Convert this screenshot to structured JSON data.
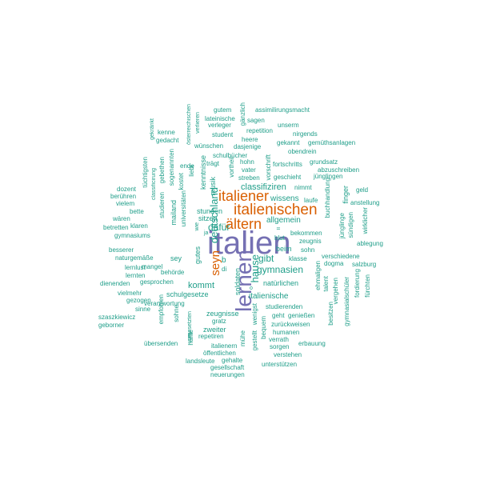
{
  "colors": {
    "small": "#1f9e89",
    "medium": "#d95f02",
    "large": "#7570b3"
  },
  "words": [
    "italien",
    "lernen",
    "italienischen",
    "italiener",
    "ältern",
    "seyn",
    "deutschland",
    "gymnasien",
    "hause",
    "gibt",
    "dafür",
    "kommt",
    "classifiziren",
    "gutem",
    "assimilirungsmacht",
    "lateinische",
    "sagen",
    "gänzlich",
    "verleger",
    "unserm",
    "repetition",
    "student",
    "nirgends",
    "heere",
    "gekannt",
    "gemüthsanlagen",
    "wünschen",
    "dasjenige",
    "obendrein",
    "verlieren",
    "österreichischen",
    "gekränkt",
    "kenne",
    "gedacht",
    "schulbücher",
    "grundsatz",
    "fortschritts",
    "abzuschreiben",
    "hohn",
    "jünglingen",
    "vater",
    "vorschrift",
    "geschieht",
    "streben",
    "nimmt",
    "trägt",
    "ende",
    "liebt",
    "vortheil",
    "musik",
    "kenntnisse",
    "tüchtigsten",
    "gebethen",
    "sogenannten",
    "classificirung",
    "kostet",
    "dozent",
    "berühren",
    "vielem",
    "studieren",
    "universitäten",
    "mailand",
    "bette",
    "wären",
    "betretten",
    "klaren",
    "gymnasiums",
    "stunden",
    "sitzen",
    "wissens",
    "laufe",
    "buchhandlung",
    "finger",
    "geld",
    "anstellung",
    "allgemein",
    "blut",
    "bekommen",
    "zeugnis",
    "sündigen",
    "wirklicher",
    "besserer",
    "naturgemäße",
    "mangel",
    "sey",
    "gutes",
    "beim",
    "sohn",
    "ablegung",
    "klasse",
    "dogma",
    "salzburg",
    "jünglinge",
    "behörde",
    "verschiedene",
    "lernlust",
    "lernten",
    "gesprochen",
    "dienenden",
    "schulgesetze",
    "natürlichen",
    "italienische",
    "ehmaligen",
    "talent",
    "vergehen",
    "fordierung",
    "fürchten",
    "vielmehr",
    "gezogen",
    "verantwortung",
    "sinne",
    "szaszkiewicz",
    "geborner",
    "empfohlen",
    "sohne",
    "studierenden",
    "gymnasialschüler",
    "zeugnisse",
    "geht",
    "genießen",
    "zweiter",
    "gratz",
    "zurückweisen",
    "besitzen",
    "bequem",
    "humanen",
    "repetiren",
    "vorgesetzten",
    "verrath",
    "sorgen",
    "erbauung",
    "übersenden",
    "italienern",
    "öffentlichen",
    "verstehen",
    "hälfte",
    "mühe",
    "gestellt",
    "landsleute",
    "gehalte",
    "unterstützen",
    "gesellschaft",
    "neuerungen",
    "soldaten",
    "wenigst",
    "ii",
    "b",
    "di",
    "o",
    "wie",
    "ja"
  ]
}
